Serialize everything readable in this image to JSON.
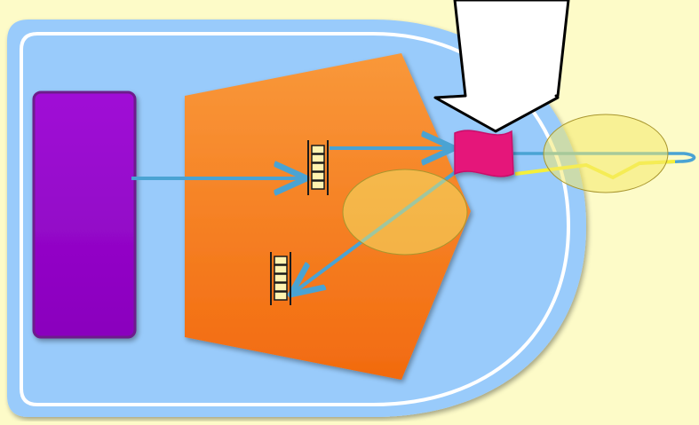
{
  "colors": {
    "background": "#fdfbc8",
    "container_fill": "#99cbfb",
    "container_outline": "#ffffff",
    "purple_block": "#9500c9",
    "orange_block": "#f7851d",
    "connector_node": "#e5177a",
    "arrow_line": "#4aa3d3",
    "queue_stroke": "#1a1a1a",
    "queue_fill": "#fff3b0",
    "highlight_ellipse": "#f4e96b",
    "callout_arrow": "#ffffff"
  },
  "diagram": {
    "shapes": [
      "rounded-container",
      "purple-block",
      "orange-pentagon",
      "pink-connector",
      "queue-top",
      "queue-bottom",
      "highlight-center",
      "highlight-right",
      "callout-arrow"
    ],
    "arrows": [
      "purple-block-to-queue-top",
      "queue-top-to-pink-connector",
      "pink-connector-to-queue-bottom",
      "pink-connector-to-right-loop"
    ]
  }
}
